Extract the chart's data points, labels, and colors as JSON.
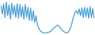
{
  "values": [
    85,
    60,
    90,
    50,
    95,
    55,
    88,
    45,
    92,
    58,
    85,
    50,
    90,
    48,
    88,
    52,
    82,
    45,
    88,
    50,
    80,
    42,
    78,
    40,
    70,
    35,
    55,
    30,
    20,
    12,
    8,
    6,
    5,
    5,
    6,
    7,
    8,
    10,
    15,
    18,
    22,
    25,
    28,
    25,
    20,
    15,
    10,
    8,
    6,
    5,
    8,
    15,
    25,
    40,
    55,
    65,
    70,
    60,
    75,
    55,
    78,
    50,
    80,
    52,
    78,
    48,
    82,
    50,
    76,
    48
  ],
  "line_color": "#4a9fd4",
  "background_color": "#ffffff",
  "linewidth": 0.9
}
